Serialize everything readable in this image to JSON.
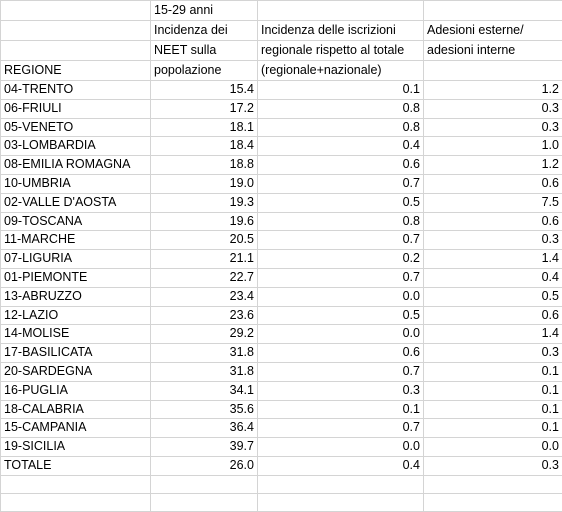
{
  "header": {
    "row1": [
      "",
      "15-29 anni",
      "",
      ""
    ],
    "row2": [
      "",
      "Incidenza dei",
      "Incidenza delle iscrizioni",
      "Adesioni esterne/"
    ],
    "row3": [
      "",
      "NEET sulla",
      "regionale rispetto al  totale",
      "adesioni interne"
    ],
    "row4": [
      "REGIONE",
      "popolazione",
      "(regionale+nazionale)",
      ""
    ]
  },
  "rows": [
    [
      "04-TRENTO",
      "15.4",
      "0.1",
      "1.2"
    ],
    [
      "06-FRIULI",
      "17.2",
      "0.8",
      "0.3"
    ],
    [
      "05-VENETO",
      "18.1",
      "0.8",
      "0.3"
    ],
    [
      "03-LOMBARDIA",
      "18.4",
      "0.4",
      "1.0"
    ],
    [
      "08-EMILIA ROMAGNA",
      "18.8",
      "0.6",
      "1.2"
    ],
    [
      "10-UMBRIA",
      "19.0",
      "0.7",
      "0.6"
    ],
    [
      "02-VALLE D'AOSTA",
      "19.3",
      "0.5",
      "7.5"
    ],
    [
      "09-TOSCANA",
      "19.6",
      "0.8",
      "0.6"
    ],
    [
      "11-MARCHE",
      "20.5",
      "0.7",
      "0.3"
    ],
    [
      "07-LIGURIA",
      "21.1",
      "0.2",
      "1.4"
    ],
    [
      "01-PIEMONTE",
      "22.7",
      "0.7",
      "0.4"
    ],
    [
      "13-ABRUZZO",
      "23.4",
      "0.0",
      "0.5"
    ],
    [
      "12-LAZIO",
      "23.6",
      "0.5",
      "0.6"
    ],
    [
      "14-MOLISE",
      "29.2",
      "0.0",
      "1.4"
    ],
    [
      "17-BASILICATA",
      "31.8",
      "0.6",
      "0.3"
    ],
    [
      "20-SARDEGNA",
      "31.8",
      "0.7",
      "0.1"
    ],
    [
      "16-PUGLIA",
      "34.1",
      "0.3",
      "0.1"
    ],
    [
      "18-CALABRIA",
      "35.6",
      "0.1",
      "0.1"
    ],
    [
      "15-CAMPANIA",
      "36.4",
      "0.7",
      "0.1"
    ],
    [
      "19-SICILIA",
      "39.7",
      "0.0",
      "0.0"
    ],
    [
      "TOTALE",
      "26.0",
      "0.4",
      "0.3"
    ]
  ]
}
